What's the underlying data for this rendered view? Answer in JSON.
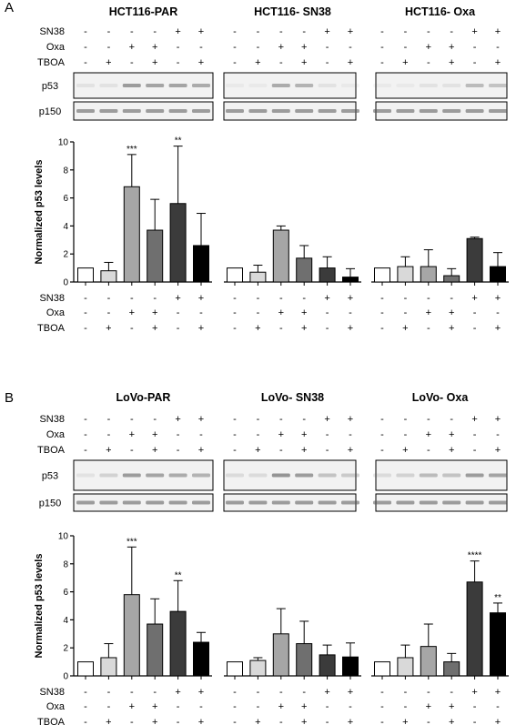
{
  "colors": {
    "control": "#ffffff",
    "tboa": "#d9d9d9",
    "oxa": "#a6a6a6",
    "oxa_tboa": "#6f6f6f",
    "sn38": "#3b3b3b",
    "sn38_tboa": "#000000",
    "axis": "#000000",
    "blot_bg": "#f2f2f2",
    "band": "#8c8c8c"
  },
  "panels": [
    {
      "letter": "A",
      "groups": [
        "HCT116-PAR",
        "HCT116- SN38",
        "HCT116- Oxa"
      ],
      "blots": [
        "p53",
        "p150"
      ],
      "row_labels": [
        "SN38",
        "Oxa",
        "TBOA"
      ],
      "conditions": {
        "SN38": [
          "-",
          "-",
          "-",
          "-",
          "+",
          "+"
        ],
        "Oxa": [
          "-",
          "-",
          "+",
          "+",
          "-",
          "-"
        ],
        "TBOA": [
          "-",
          "+",
          "-",
          "+",
          "-",
          "+"
        ]
      },
      "p53_bands": [
        [
          0.1,
          0.1,
          0.55,
          0.5,
          0.5,
          0.45
        ],
        [
          0.05,
          0.05,
          0.45,
          0.4,
          0.1,
          0.05
        ],
        [
          0.05,
          0.05,
          0.1,
          0.1,
          0.35,
          0.3
        ]
      ],
      "chart_data": {
        "type": "bar",
        "title": "",
        "xlabel": "",
        "ylabel": "Normalized p53 levels",
        "ylim": [
          0,
          10
        ],
        "yticks": [
          0,
          2,
          4,
          6,
          8,
          10
        ],
        "groups": [
          "HCT116-PAR",
          "HCT116- SN38",
          "HCT116- Oxa"
        ],
        "conditions": [
          "control",
          "TBOA",
          "Oxa",
          "Oxa+TBOA",
          "SN38",
          "SN38+TBOA"
        ],
        "values": [
          [
            1.0,
            0.8,
            6.8,
            3.7,
            5.6,
            2.6
          ],
          [
            1.0,
            0.7,
            3.7,
            1.7,
            1.0,
            0.35
          ],
          [
            1.0,
            1.1,
            1.1,
            0.45,
            3.1,
            1.1
          ]
        ],
        "errors": [
          [
            0.0,
            0.6,
            2.3,
            2.2,
            4.1,
            2.3
          ],
          [
            0.0,
            0.5,
            0.3,
            0.9,
            0.8,
            0.6
          ],
          [
            0.0,
            0.7,
            1.2,
            0.5,
            0.1,
            1.0
          ]
        ],
        "annotations": [
          {
            "group": 0,
            "bar": 2,
            "text": "***"
          },
          {
            "group": 0,
            "bar": 4,
            "text": "**"
          }
        ]
      }
    },
    {
      "letter": "B",
      "groups": [
        "LoVo-PAR",
        "LoVo- SN38",
        "LoVo- Oxa"
      ],
      "blots": [
        "p53",
        "p150"
      ],
      "row_labels": [
        "SN38",
        "Oxa",
        "TBOA"
      ],
      "conditions": {
        "SN38": [
          "-",
          "-",
          "-",
          "-",
          "+",
          "+"
        ],
        "Oxa": [
          "-",
          "-",
          "+",
          "+",
          "-",
          "-"
        ],
        "TBOA": [
          "-",
          "+",
          "-",
          "+",
          "-",
          "+"
        ]
      },
      "p53_bands": [
        [
          0.1,
          0.2,
          0.55,
          0.5,
          0.45,
          0.4
        ],
        [
          0.15,
          0.15,
          0.6,
          0.55,
          0.3,
          0.25
        ],
        [
          0.15,
          0.2,
          0.35,
          0.3,
          0.55,
          0.5
        ]
      ],
      "chart_data": {
        "type": "bar",
        "title": "",
        "xlabel": "",
        "ylabel": "Normalized p53 levels",
        "ylim": [
          0,
          10
        ],
        "yticks": [
          0,
          2,
          4,
          6,
          8,
          10
        ],
        "groups": [
          "LoVo-PAR",
          "LoVo- SN38",
          "LoVo- Oxa"
        ],
        "conditions": [
          "control",
          "TBOA",
          "Oxa",
          "Oxa+TBOA",
          "SN38",
          "SN38+TBOA"
        ],
        "values": [
          [
            1.0,
            1.3,
            5.8,
            3.7,
            4.6,
            2.4
          ],
          [
            1.0,
            1.1,
            3.0,
            2.3,
            1.5,
            1.35
          ],
          [
            1.0,
            1.3,
            2.1,
            1.0,
            6.7,
            4.5
          ]
        ],
        "errors": [
          [
            0.0,
            1.0,
            3.4,
            1.8,
            2.2,
            0.7
          ],
          [
            0.0,
            0.2,
            1.8,
            1.6,
            0.7,
            1.0
          ],
          [
            0.0,
            0.9,
            1.6,
            0.6,
            1.5,
            0.7
          ]
        ],
        "annotations": [
          {
            "group": 0,
            "bar": 2,
            "text": "***"
          },
          {
            "group": 0,
            "bar": 4,
            "text": "**"
          },
          {
            "group": 2,
            "bar": 4,
            "text": "****"
          },
          {
            "group": 2,
            "bar": 5,
            "text": "**"
          }
        ]
      }
    }
  ]
}
